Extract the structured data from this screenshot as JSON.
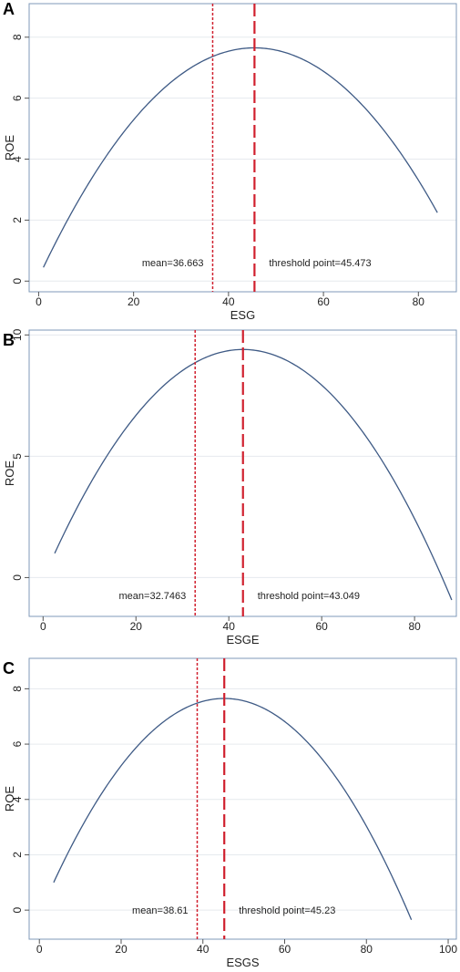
{
  "chart_data": [
    {
      "panel": "A",
      "type": "line",
      "xlabel": "ESG",
      "ylabel": "ROE",
      "xlim": [
        -2,
        88
      ],
      "ylim": [
        -0.35,
        9.1
      ],
      "xticks": [
        0,
        20,
        40,
        60,
        80
      ],
      "yticks": [
        0,
        2,
        4,
        6,
        8
      ],
      "grid": true,
      "curve": {
        "x_start": 1,
        "x_end": 84,
        "vertex_x": 45.473,
        "vertex_y": 7.65,
        "y_start": 0.45
      },
      "mean": {
        "value": 36.663,
        "label": "mean=36.663"
      },
      "threshold": {
        "value": 45.473,
        "label": "threshold point=45.473"
      }
    },
    {
      "panel": "B",
      "type": "line",
      "xlabel": "ESGE",
      "ylabel": "ROE",
      "xlim": [
        -3,
        89
      ],
      "ylim": [
        -1.6,
        10.2
      ],
      "xticks": [
        0,
        20,
        40,
        60,
        80
      ],
      "yticks": [
        0,
        5,
        10
      ],
      "grid": true,
      "curve": {
        "x_start": 2.5,
        "x_end": 88,
        "vertex_x": 43.049,
        "vertex_y": 9.4,
        "y_start": 1.0
      },
      "mean": {
        "value": 32.7463,
        "label": "mean=32.7463"
      },
      "threshold": {
        "value": 43.049,
        "label": "threshold point=43.049"
      }
    },
    {
      "panel": "C",
      "type": "line",
      "xlabel": "ESGS",
      "ylabel": "ROE",
      "xlim": [
        -2.5,
        102
      ],
      "ylim": [
        -1.05,
        9.1
      ],
      "xticks": [
        0,
        20,
        40,
        60,
        80,
        100
      ],
      "yticks": [
        0,
        2,
        4,
        6,
        8
      ],
      "grid": true,
      "curve": {
        "x_start": 3.5,
        "x_end": 91,
        "vertex_x": 45.23,
        "vertex_y": 7.65,
        "y_start": 1.0
      },
      "mean": {
        "value": 38.61,
        "label": "mean=38.61"
      },
      "threshold": {
        "value": 45.23,
        "label": "threshold point=45.23"
      }
    }
  ],
  "colors": {
    "curve": "#3e5a85",
    "mean_line": "#d0202e",
    "threshold_line": "#d0202e",
    "frame": "#7f9ab8",
    "grid": "#e6eaee"
  }
}
